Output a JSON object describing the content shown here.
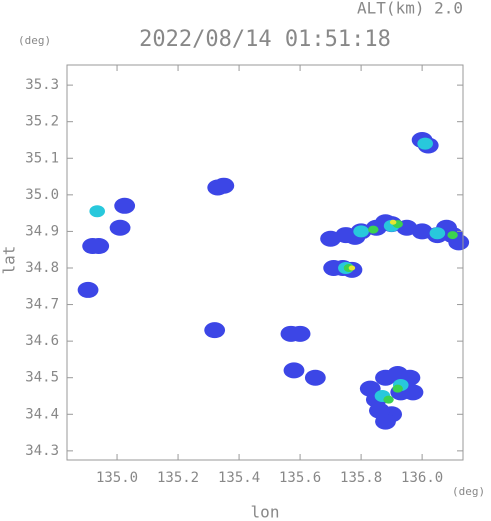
{
  "chart_data": {
    "type": "scatter",
    "title": "2022/08/14 01:51:18",
    "header": "ALT(km) 2.0",
    "y_unit": "(deg)",
    "x_unit": "(deg)",
    "ylabel": "lat",
    "xlabel": "lon",
    "xlim": [
      134.836,
      136.134
    ],
    "ylim": [
      34.275,
      35.355
    ],
    "xticks": [
      {
        "value": 135,
        "label": "135.0"
      },
      135.2,
      135.4,
      135.6,
      135.8,
      {
        "value": 136,
        "label": "136.0"
      }
    ],
    "yticks": [
      34.3,
      34.4,
      34.5,
      34.6,
      34.7,
      34.8,
      34.9,
      {
        "value": 35,
        "label": "35.0"
      },
      35.1,
      35.2,
      35.3
    ],
    "series": [
      {
        "color": "#3c46e6",
        "x": [
          135.7,
          135.75,
          135.8,
          135.85,
          135.9,
          135.95,
          136.0,
          136.05,
          136.1,
          136.12,
          135.78,
          135.88,
          136.08,
          135.71,
          135.74,
          135.77,
          136.0,
          136.02,
          135.83,
          135.85,
          135.88,
          135.92,
          135.96,
          135.93,
          135.9,
          135.88,
          135.86,
          135.97,
          134.92,
          134.94,
          134.905,
          135.01,
          135.025,
          135.33,
          135.35,
          135.57,
          135.6,
          135.58,
          135.65,
          135.32
        ],
        "values": [
          34.88,
          34.89,
          34.9,
          34.91,
          34.92,
          34.91,
          34.9,
          34.89,
          34.89,
          34.87,
          34.885,
          34.925,
          34.91,
          34.8,
          34.8,
          34.795,
          35.15,
          35.135,
          34.47,
          34.44,
          34.5,
          34.51,
          34.5,
          34.46,
          34.4,
          34.38,
          34.41,
          34.46,
          34.86,
          34.86,
          34.74,
          34.91,
          34.97,
          35.02,
          35.025,
          34.62,
          34.62,
          34.52,
          34.5,
          34.63
        ]
      },
      {
        "color": "#28c8dc",
        "x": [
          134.935,
          135.8,
          135.9,
          136.05,
          135.75,
          135.87,
          135.93,
          136.01
        ],
        "values": [
          34.955,
          34.9,
          34.915,
          34.895,
          34.8,
          34.45,
          34.48,
          35.14
        ]
      },
      {
        "color": "#3cd250",
        "x": [
          135.84,
          135.92,
          136.1,
          135.76,
          135.89,
          135.92
        ],
        "values": [
          34.905,
          34.92,
          34.89,
          34.8,
          34.44,
          34.47
        ]
      },
      {
        "color": "#e6e632",
        "x": [
          135.905,
          135.77
        ],
        "values": [
          34.925,
          34.8
        ]
      }
    ]
  }
}
